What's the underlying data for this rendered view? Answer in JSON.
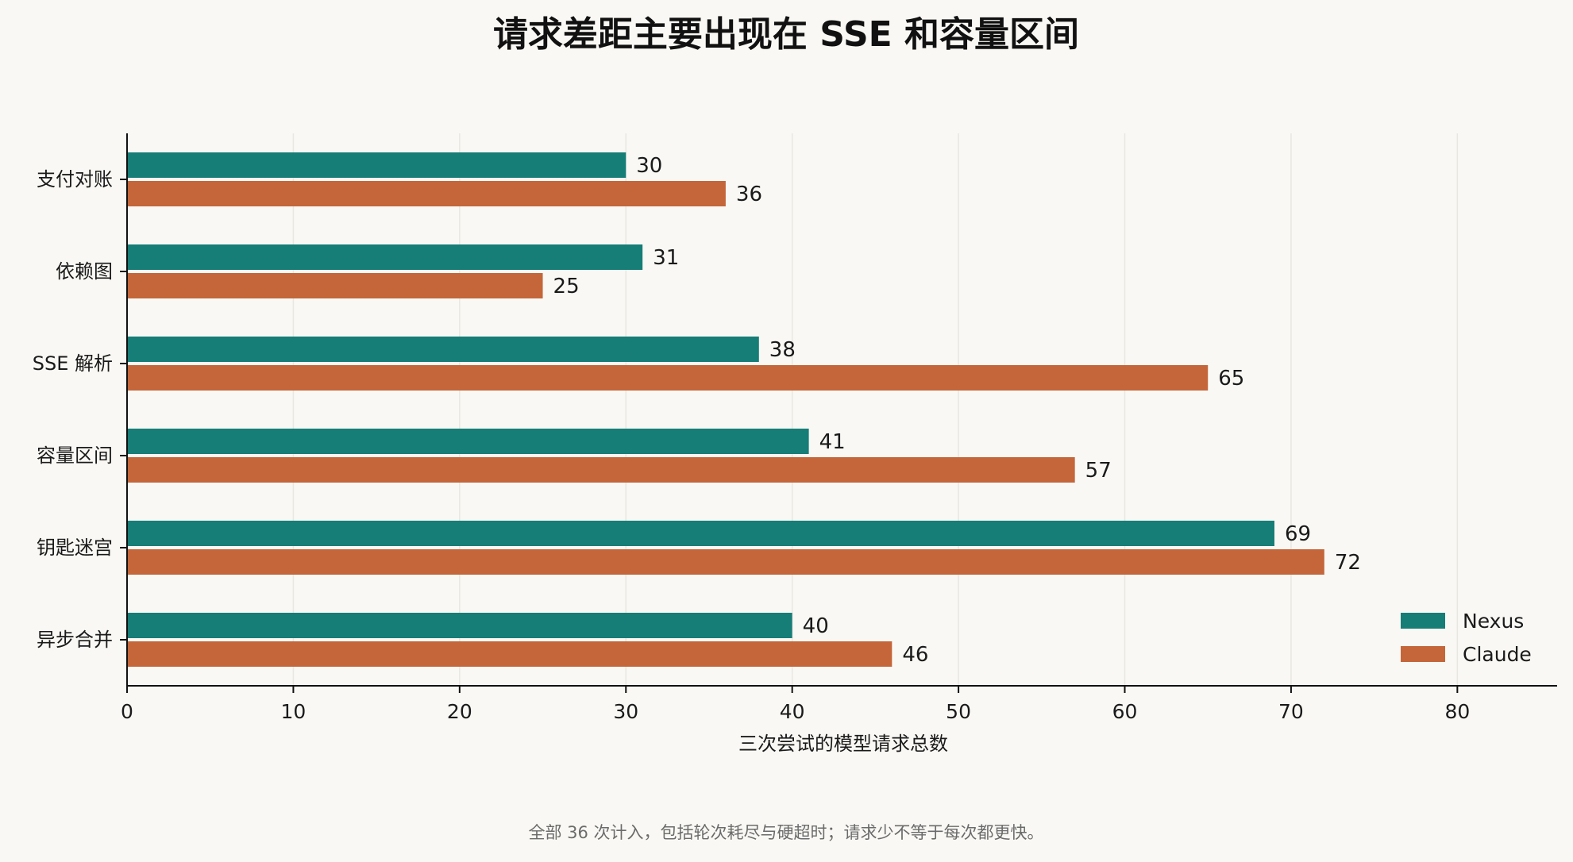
{
  "chart_data": {
    "type": "bar",
    "orientation": "horizontal",
    "title": "请求差距主要出现在 SSE 和容量区间",
    "xlabel": "三次尝试的模型请求总数",
    "ylabel": "",
    "footnote": "全部 36 次计入，包括轮次耗尽与硬超时；请求少不等于每次都更快。",
    "categories": [
      "支付对账",
      "依赖图",
      "SSE 解析",
      "容量区间",
      "钥匙迷宫",
      "异步合并"
    ],
    "series": [
      {
        "name": "Nexus",
        "color": "#177d77",
        "values": [
          30,
          31,
          38,
          41,
          69,
          40
        ]
      },
      {
        "name": "Claude",
        "color": "#c4663a",
        "values": [
          36,
          25,
          65,
          57,
          72,
          46
        ]
      }
    ],
    "xlim": [
      0,
      86
    ],
    "xticks": [
      0,
      10,
      20,
      30,
      40,
      50,
      60,
      70,
      80
    ],
    "grid": "vertical",
    "legend": "bottom-right",
    "data_labels": true
  }
}
